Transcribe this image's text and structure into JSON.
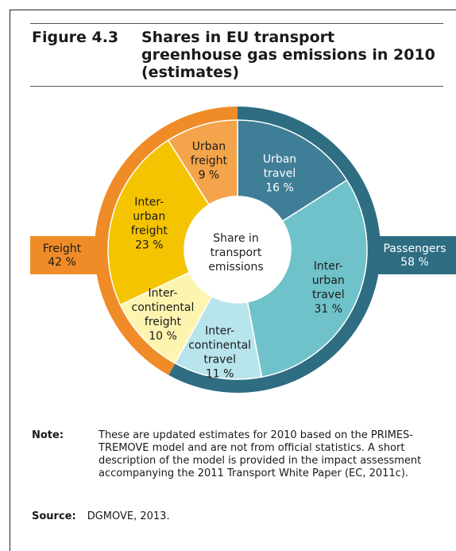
{
  "figure": {
    "number": "Figure 4.3",
    "title": "Shares in EU transport greenhouse gas emissions in 2010 (estimates)"
  },
  "chart_data": {
    "type": "pie",
    "variant": "two-level donut",
    "center_label": "Share in transport emissions",
    "outer": [
      {
        "label": "Passengers",
        "value": 58,
        "color": "#2e6d82"
      },
      {
        "label": "Freight",
        "value": 42,
        "color": "#f08c28"
      }
    ],
    "inner": [
      {
        "label": "Urban travel",
        "value": 16,
        "color": "#3f7e97",
        "group": "Passengers"
      },
      {
        "label": "Inter-urban travel",
        "value": 31,
        "color": "#6fc2c9",
        "group": "Passengers"
      },
      {
        "label": "Inter-continental travel",
        "value": 11,
        "color": "#b8e4ec",
        "group": "Passengers"
      },
      {
        "label": "Inter-continental freight",
        "value": 10,
        "color": "#fdf4b0",
        "group": "Freight"
      },
      {
        "label": "Inter-urban freight",
        "value": 23,
        "color": "#f5c400",
        "group": "Freight"
      },
      {
        "label": "Urban freight",
        "value": 9,
        "color": "#f4a44a",
        "group": "Freight"
      }
    ],
    "unit": "%",
    "text": {
      "passengers_name": "Passengers",
      "passengers_value": "58 %",
      "freight_name": "Freight",
      "freight_value": "42 %",
      "center_lines": [
        "Share in",
        "transport",
        "emissions"
      ],
      "urban_travel": [
        "Urban",
        "travel",
        "16 %"
      ],
      "interurban_travel": [
        "Inter-",
        "urban",
        "travel",
        "31 %"
      ],
      "intercont_travel": [
        "Inter-",
        "continental",
        "travel",
        "11 %"
      ],
      "intercont_freight": [
        "Inter-",
        "continental",
        "freight",
        "10 %"
      ],
      "interurban_freight": [
        "Inter-",
        "urban",
        "freight",
        "23 %"
      ],
      "urban_freight": [
        "Urban",
        "freight",
        "9 %"
      ]
    }
  },
  "note": {
    "label": "Note:",
    "text": "These are updated estimates for 2010 based on the PRIMES-TREMOVE model and are not from official statistics. A short description of the model is provided in the impact assessment accompanying the 2011 Transport White Paper (EC, 2011c)."
  },
  "source": {
    "label": "Source:",
    "text": "DGMOVE, 2013."
  }
}
